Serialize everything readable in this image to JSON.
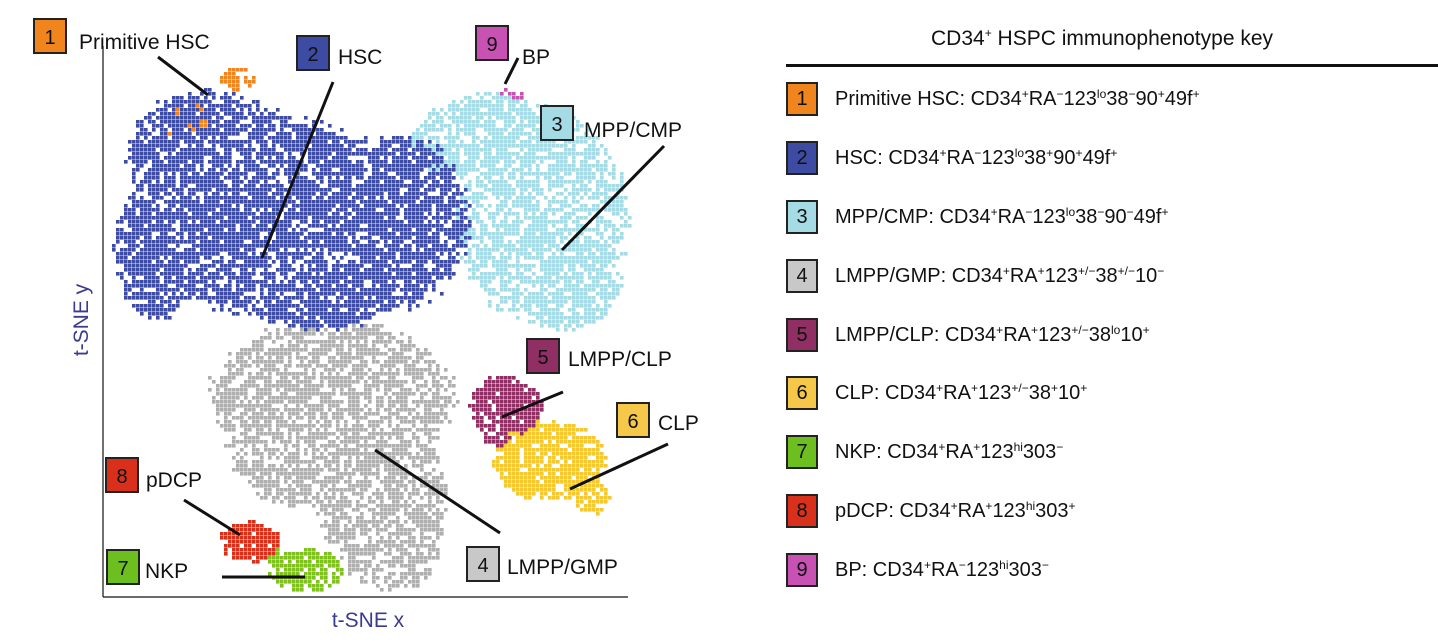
{
  "chart_data": {
    "type": "scatter",
    "xlabel": "t-SNE x",
    "ylabel": "t-SNE y",
    "grid": false,
    "series": [
      {
        "id": 1,
        "name": "Primitive HSC",
        "color": "#f0851d"
      },
      {
        "id": 2,
        "name": "HSC",
        "color": "#3e4ba2"
      },
      {
        "id": 3,
        "name": "MPP/CMP",
        "color": "#a5dbe5"
      },
      {
        "id": 4,
        "name": "LMPP/GMP",
        "color": "#aeaeae"
      },
      {
        "id": 5,
        "name": "LMPP/CLP",
        "color": "#8f2f63"
      },
      {
        "id": 6,
        "name": "CLP",
        "color": "#f5c82d"
      },
      {
        "id": 7,
        "name": "NKP",
        "color": "#7fc21e"
      },
      {
        "id": 8,
        "name": "pDCP",
        "color": "#d9301c"
      },
      {
        "id": 9,
        "name": "BP",
        "color": "#c852b3"
      }
    ],
    "annotations": [
      {
        "num": "1",
        "text": "Primitive HSC"
      },
      {
        "num": "2",
        "text": "HSC"
      },
      {
        "num": "9",
        "text": "BP"
      },
      {
        "num": "3",
        "text": "MPP/CMP"
      },
      {
        "num": "5",
        "text": "LMPP/CLP"
      },
      {
        "num": "6",
        "text": "CLP"
      },
      {
        "num": "8",
        "text": "pDCP"
      },
      {
        "num": "7",
        "text": "NKP"
      },
      {
        "num": "4",
        "text": "LMPP/GMP"
      }
    ]
  },
  "legend": {
    "title_main": "CD34",
    "title_sup": "+",
    "title_rest": " HSPC immunophenotype key",
    "items": [
      {
        "num": "1",
        "color": "#f0851d",
        "parts": [
          [
            "t",
            "Primitive HSC: CD34"
          ],
          [
            "s",
            "+"
          ],
          [
            "t",
            "RA"
          ],
          [
            "s",
            "−"
          ],
          [
            "t",
            "123"
          ],
          [
            "s",
            "lo"
          ],
          [
            "t",
            "38"
          ],
          [
            "s",
            "−"
          ],
          [
            "t",
            "90"
          ],
          [
            "s",
            "+"
          ],
          [
            "t",
            "49f"
          ],
          [
            "s",
            "+"
          ]
        ]
      },
      {
        "num": "2",
        "color": "#3e4ba2",
        "parts": [
          [
            "t",
            "HSC: CD34"
          ],
          [
            "s",
            "+"
          ],
          [
            "t",
            "RA"
          ],
          [
            "s",
            "−"
          ],
          [
            "t",
            "123"
          ],
          [
            "s",
            "lo"
          ],
          [
            "t",
            "38"
          ],
          [
            "s",
            "+"
          ],
          [
            "t",
            "90"
          ],
          [
            "s",
            "+"
          ],
          [
            "t",
            "49f"
          ],
          [
            "s",
            "+"
          ]
        ]
      },
      {
        "num": "3",
        "color": "#a5dbe5",
        "parts": [
          [
            "t",
            "MPP/CMP: CD34"
          ],
          [
            "s",
            "+"
          ],
          [
            "t",
            "RA"
          ],
          [
            "s",
            "−"
          ],
          [
            "t",
            "123"
          ],
          [
            "s",
            "lo"
          ],
          [
            "t",
            "38"
          ],
          [
            "s",
            "−"
          ],
          [
            "t",
            "90"
          ],
          [
            "s",
            "−"
          ],
          [
            "t",
            "49f"
          ],
          [
            "s",
            "+"
          ]
        ]
      },
      {
        "num": "4",
        "color": "#c8c8c8",
        "parts": [
          [
            "t",
            "LMPP/GMP: CD34"
          ],
          [
            "s",
            "+"
          ],
          [
            "t",
            "RA"
          ],
          [
            "s",
            "+"
          ],
          [
            "t",
            "123"
          ],
          [
            "s",
            "+/−"
          ],
          [
            "t",
            "38"
          ],
          [
            "s",
            "+/−"
          ],
          [
            "t",
            "10"
          ],
          [
            "s",
            "−"
          ]
        ]
      },
      {
        "num": "5",
        "color": "#8f2f63",
        "parts": [
          [
            "t",
            "LMPP/CLP: CD34"
          ],
          [
            "s",
            "+"
          ],
          [
            "t",
            "RA"
          ],
          [
            "s",
            "+"
          ],
          [
            "t",
            "123"
          ],
          [
            "s",
            "+/−"
          ],
          [
            "t",
            "38"
          ],
          [
            "s",
            "lo"
          ],
          [
            "t",
            "10"
          ],
          [
            "s",
            "+"
          ]
        ]
      },
      {
        "num": "6",
        "color": "#f5c84a",
        "parts": [
          [
            "t",
            "CLP: CD34"
          ],
          [
            "s",
            "+"
          ],
          [
            "t",
            "RA"
          ],
          [
            "s",
            "+"
          ],
          [
            "t",
            "123"
          ],
          [
            "s",
            "+/−"
          ],
          [
            "t",
            "38"
          ],
          [
            "s",
            "+"
          ],
          [
            "t",
            "10"
          ],
          [
            "s",
            "+"
          ]
        ]
      },
      {
        "num": "7",
        "color": "#6cbf1e",
        "parts": [
          [
            "t",
            "NKP: CD34"
          ],
          [
            "s",
            "+"
          ],
          [
            "t",
            "RA"
          ],
          [
            "s",
            "+"
          ],
          [
            "t",
            "123"
          ],
          [
            "s",
            "hi"
          ],
          [
            "t",
            "303"
          ],
          [
            "s",
            "−"
          ]
        ]
      },
      {
        "num": "8",
        "color": "#d9301c",
        "parts": [
          [
            "t",
            "pDCP: CD34"
          ],
          [
            "s",
            "+"
          ],
          [
            "t",
            "RA"
          ],
          [
            "s",
            "+"
          ],
          [
            "t",
            "123"
          ],
          [
            "s",
            "hi"
          ],
          [
            "t",
            "303"
          ],
          [
            "s",
            "+"
          ]
        ]
      },
      {
        "num": "9",
        "color": "#c852b3",
        "parts": [
          [
            "t",
            "BP: CD34"
          ],
          [
            "s",
            "+"
          ],
          [
            "t",
            "RA"
          ],
          [
            "s",
            "−"
          ],
          [
            "t",
            "123"
          ],
          [
            "s",
            "hi"
          ],
          [
            "t",
            "303"
          ],
          [
            "s",
            "−"
          ]
        ]
      }
    ]
  }
}
